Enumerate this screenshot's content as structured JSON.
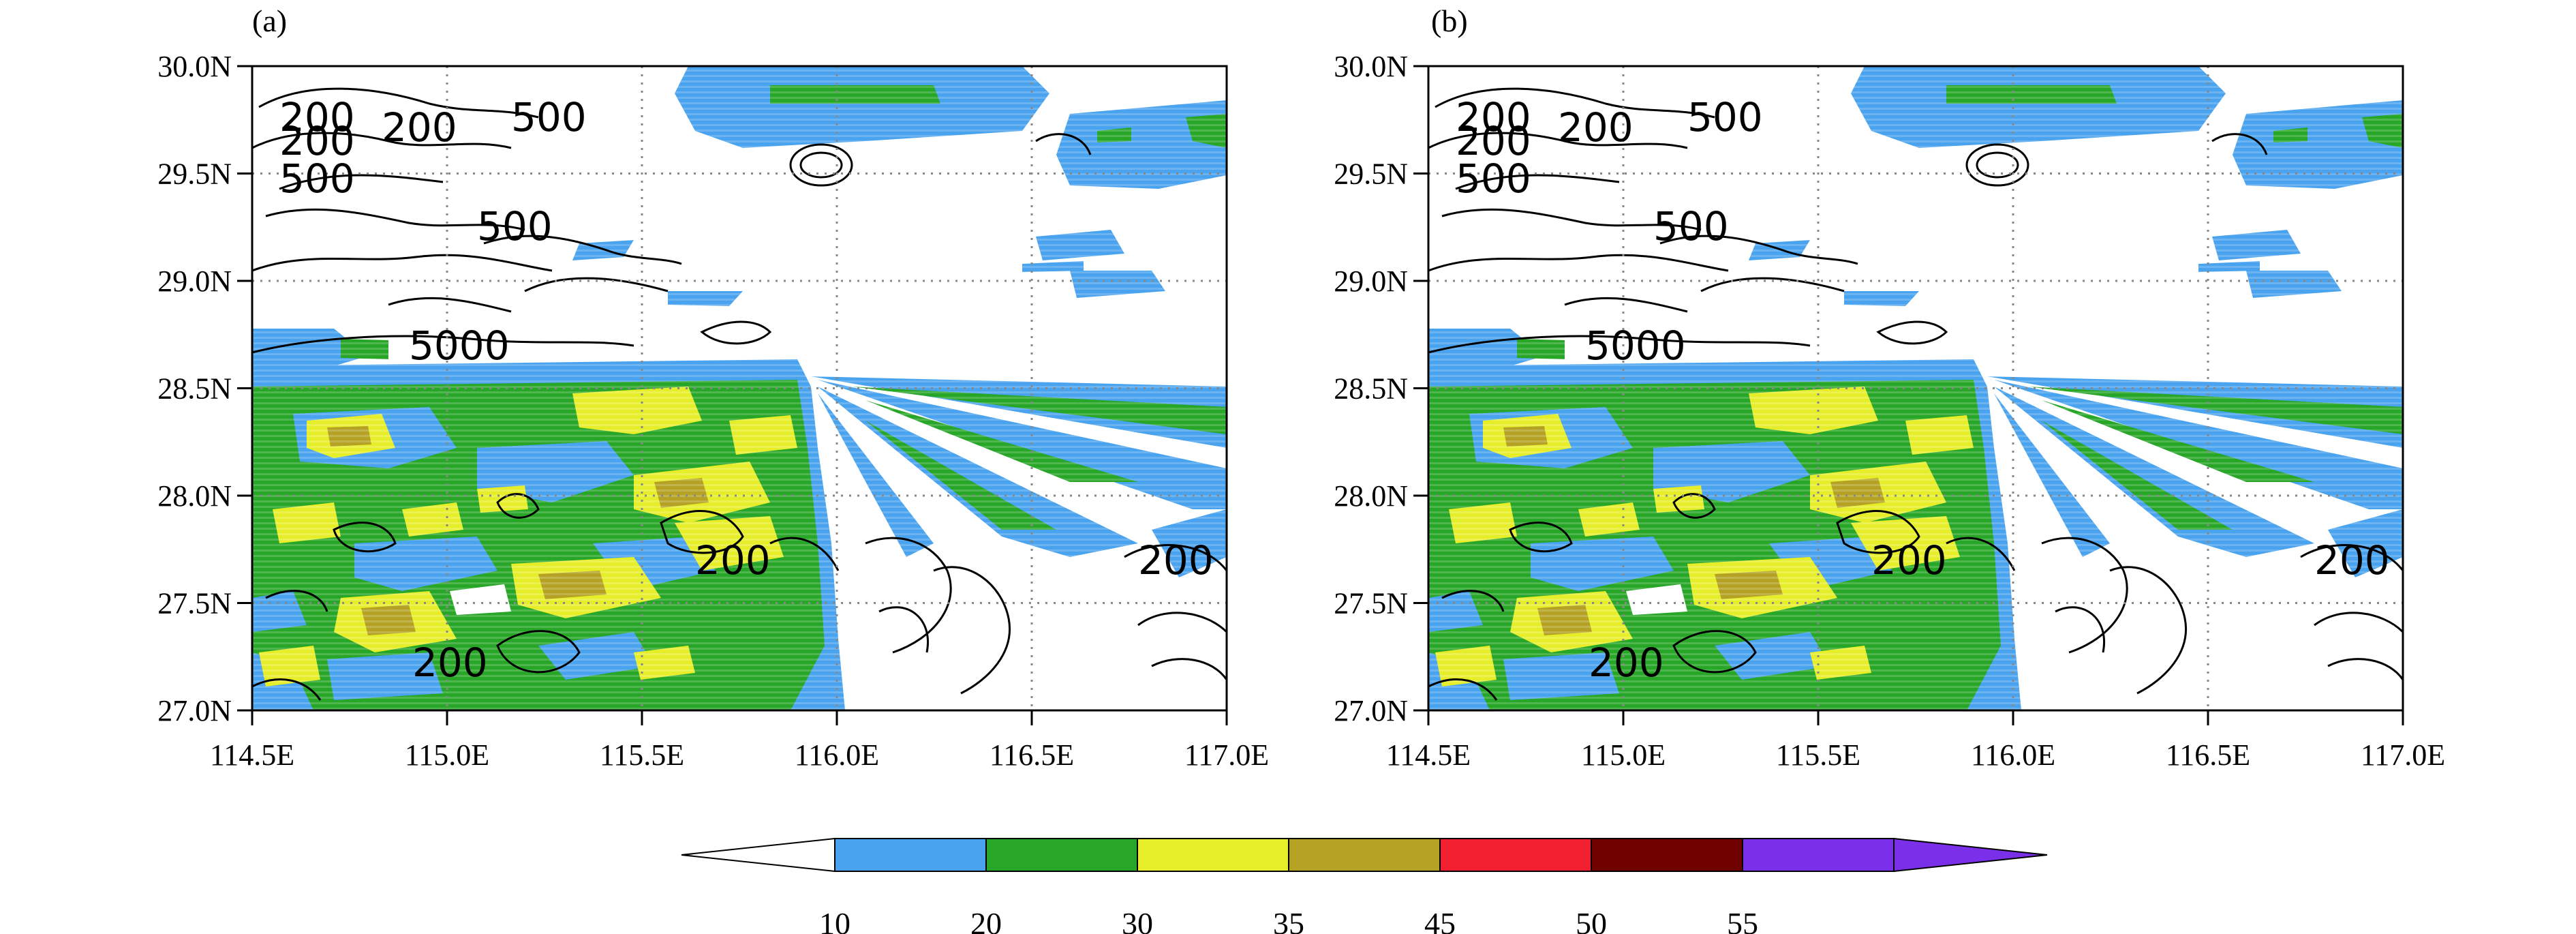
{
  "panels": [
    {
      "label": "(a)",
      "contour_labels": [
        "200",
        "200",
        "200",
        "500",
        "500",
        "500",
        "5000",
        "200",
        "200",
        "200"
      ]
    },
    {
      "label": "(b)",
      "contour_labels": [
        "200",
        "200",
        "200",
        "500",
        "500",
        "500",
        "5000",
        "200",
        "200",
        "200"
      ]
    }
  ],
  "map_axes": {
    "x_ticks": [
      "114.5E",
      "115.0E",
      "115.5E",
      "116.0E",
      "116.5E",
      "117.0E"
    ],
    "y_ticks": [
      "30.0N",
      "29.5N",
      "29.0N",
      "28.5N",
      "28.0N",
      "27.5N",
      "27.0N"
    ],
    "lon_range": [
      114.5,
      117.0
    ],
    "lat_range": [
      27.0,
      30.0
    ],
    "grid": "dotted"
  },
  "colorbar": {
    "levels": [
      "10",
      "20",
      "30",
      "35",
      "45",
      "50",
      "55"
    ],
    "colors": [
      "#ffffff",
      "#4aa3ee",
      "#28a628",
      "#e6ee2a",
      "#b5a224",
      "#f02030",
      "#6e0000",
      "#7a30e8"
    ]
  },
  "colors": {
    "reflectivity_blue": "#4aa3ee",
    "reflectivity_green": "#28a628",
    "reflectivity_yellow": "#e6ee2a",
    "reflectivity_olive": "#b5a224",
    "contour_line": "#000000"
  }
}
